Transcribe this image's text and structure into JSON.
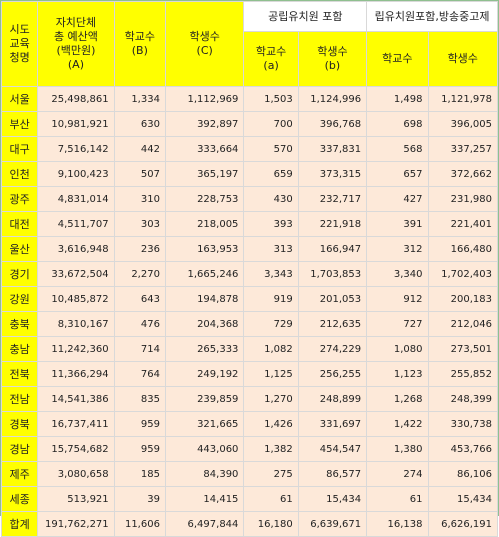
{
  "header": {
    "region": [
      "시도",
      "교육",
      "청명"
    ],
    "budget": [
      "자치단체",
      "총 예산액",
      "(백만원)",
      "(A)"
    ],
    "schools": [
      "학교수",
      "(B)"
    ],
    "students": [
      "학생수",
      "(C)"
    ],
    "group1": "공립유치원 포함",
    "group1_schools": [
      "학교수",
      "(a)"
    ],
    "group1_students": [
      "학생수",
      "(b)"
    ],
    "group2": "립유치원포함,방송중고제",
    "group2_schools": "학교수",
    "group2_students": "학생수"
  },
  "rows": [
    [
      "서울",
      "25,498,861",
      "1,334",
      "1,112,969",
      "1,503",
      "1,124,996",
      "1,498",
      "1,121,978"
    ],
    [
      "부산",
      "10,981,921",
      "630",
      "392,897",
      "700",
      "396,768",
      "698",
      "396,005"
    ],
    [
      "대구",
      "7,516,142",
      "442",
      "333,664",
      "570",
      "337,831",
      "568",
      "337,257"
    ],
    [
      "인천",
      "9,100,423",
      "507",
      "365,197",
      "659",
      "373,315",
      "657",
      "372,662"
    ],
    [
      "광주",
      "4,831,014",
      "310",
      "228,753",
      "430",
      "232,717",
      "427",
      "231,980"
    ],
    [
      "대전",
      "4,511,707",
      "303",
      "218,005",
      "393",
      "221,918",
      "391",
      "221,401"
    ],
    [
      "울산",
      "3,616,948",
      "236",
      "163,953",
      "313",
      "166,947",
      "312",
      "166,480"
    ],
    [
      "경기",
      "33,672,504",
      "2,270",
      "1,665,246",
      "3,343",
      "1,703,853",
      "3,340",
      "1,702,403"
    ],
    [
      "강원",
      "10,485,872",
      "643",
      "194,878",
      "919",
      "201,053",
      "912",
      "200,183"
    ],
    [
      "충북",
      "8,310,167",
      "476",
      "204,368",
      "729",
      "212,635",
      "727",
      "212,046"
    ],
    [
      "충남",
      "11,242,360",
      "714",
      "265,333",
      "1,082",
      "274,229",
      "1,080",
      "273,501"
    ],
    [
      "전북",
      "11,366,294",
      "764",
      "249,192",
      "1,125",
      "256,255",
      "1,123",
      "255,852"
    ],
    [
      "전남",
      "14,541,386",
      "835",
      "239,859",
      "1,270",
      "248,899",
      "1,268",
      "248,399"
    ],
    [
      "경북",
      "16,737,411",
      "959",
      "321,665",
      "1,426",
      "331,697",
      "1,422",
      "330,738"
    ],
    [
      "경남",
      "15,754,682",
      "959",
      "443,060",
      "1,382",
      "454,547",
      "1,380",
      "453,766"
    ],
    [
      "제주",
      "3,080,658",
      "185",
      "84,390",
      "275",
      "86,577",
      "274",
      "86,106"
    ],
    [
      "세종",
      "513,921",
      "39",
      "14,415",
      "61",
      "15,434",
      "61",
      "15,434"
    ],
    [
      "합계",
      "191,762,271",
      "11,606",
      "6,497,844",
      "16,180",
      "6,639,671",
      "16,138",
      "6,626,191"
    ]
  ]
}
